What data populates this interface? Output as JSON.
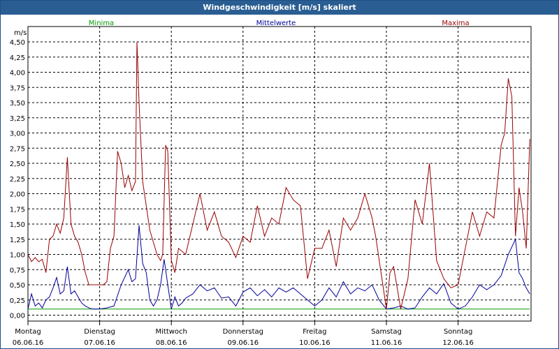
{
  "window": {
    "title": "Windgeschwindigkeit [m/s] skaliert"
  },
  "chart_data": {
    "type": "line",
    "title": "Windgeschwindigkeit [m/s] skaliert",
    "ylabel": "m/s",
    "ylim": [
      0,
      4.7
    ],
    "xlim": [
      0,
      7
    ],
    "yticks": [
      "0,00",
      "0,25",
      "0,50",
      "0,75",
      "1,00",
      "1,25",
      "1,50",
      "1,75",
      "2,00",
      "2,25",
      "2,50",
      "2,75",
      "3,00",
      "3,25",
      "3,50",
      "3,75",
      "4,00",
      "4,25",
      "4,50"
    ],
    "x_labels": [
      {
        "day": "Montag",
        "date": "06.06.16"
      },
      {
        "day": "Dienstag",
        "date": "07.06.16"
      },
      {
        "day": "Mittwoch",
        "date": "08.06.16"
      },
      {
        "day": "Donnerstag",
        "date": "09.06.16"
      },
      {
        "day": "Freitag",
        "date": "10.06.16"
      },
      {
        "day": "Samstag",
        "date": "11.06.16"
      },
      {
        "day": "Sonntag",
        "date": "12.06.16"
      }
    ],
    "grid": true,
    "legend": "top",
    "colors": {
      "minima": "#009900",
      "mittelwerte": "#000099",
      "maxima": "#990000",
      "title_bar": "#2a5e92"
    },
    "series": [
      {
        "name": "Minima",
        "x": [
          0,
          7
        ],
        "values": [
          0.1,
          0.1
        ]
      },
      {
        "name": "Mittelwerte",
        "x": [
          0,
          0.05,
          0.1,
          0.15,
          0.2,
          0.25,
          0.3,
          0.35,
          0.4,
          0.45,
          0.5,
          0.55,
          0.6,
          0.65,
          0.7,
          0.75,
          0.8,
          0.85,
          0.9,
          1.0,
          1.1,
          1.2,
          1.3,
          1.4,
          1.45,
          1.5,
          1.55,
          1.6,
          1.65,
          1.7,
          1.75,
          1.8,
          1.85,
          1.9,
          1.95,
          2.0,
          2.05,
          2.1,
          2.15,
          2.2,
          2.3,
          2.4,
          2.5,
          2.6,
          2.7,
          2.8,
          2.9,
          3.0,
          3.1,
          3.2,
          3.3,
          3.4,
          3.5,
          3.6,
          3.7,
          3.8,
          3.9,
          4.0,
          4.1,
          4.2,
          4.3,
          4.4,
          4.5,
          4.6,
          4.7,
          4.8,
          4.9,
          5.0,
          5.1,
          5.2,
          5.3,
          5.4,
          5.5,
          5.6,
          5.7,
          5.8,
          5.9,
          6.0,
          6.1,
          6.2,
          6.3,
          6.4,
          6.5,
          6.6,
          6.7,
          6.8,
          6.85,
          6.9,
          6.95,
          7.0
        ],
        "values": [
          0.1,
          0.35,
          0.15,
          0.2,
          0.12,
          0.25,
          0.3,
          0.45,
          0.62,
          0.35,
          0.4,
          0.8,
          0.35,
          0.4,
          0.3,
          0.2,
          0.15,
          0.12,
          0.1,
          0.1,
          0.12,
          0.15,
          0.5,
          0.75,
          0.55,
          0.6,
          1.48,
          0.85,
          0.7,
          0.25,
          0.15,
          0.25,
          0.5,
          0.92,
          0.5,
          0.1,
          0.3,
          0.15,
          0.2,
          0.28,
          0.35,
          0.5,
          0.4,
          0.45,
          0.28,
          0.3,
          0.15,
          0.38,
          0.45,
          0.32,
          0.42,
          0.3,
          0.45,
          0.38,
          0.45,
          0.35,
          0.25,
          0.15,
          0.25,
          0.45,
          0.3,
          0.55,
          0.35,
          0.45,
          0.4,
          0.5,
          0.25,
          0.1,
          0.12,
          0.15,
          0.1,
          0.12,
          0.3,
          0.45,
          0.35,
          0.52,
          0.2,
          0.1,
          0.15,
          0.3,
          0.5,
          0.42,
          0.5,
          0.65,
          1.0,
          1.25,
          0.7,
          0.6,
          0.45,
          0.35
        ]
      },
      {
        "name": "Maxima",
        "x": [
          0,
          0.05,
          0.1,
          0.15,
          0.2,
          0.25,
          0.3,
          0.35,
          0.4,
          0.45,
          0.5,
          0.55,
          0.6,
          0.65,
          0.7,
          0.75,
          0.8,
          0.85,
          0.9,
          0.95,
          1.0,
          1.05,
          1.1,
          1.15,
          1.2,
          1.25,
          1.3,
          1.35,
          1.4,
          1.45,
          1.5,
          1.52,
          1.55,
          1.6,
          1.65,
          1.7,
          1.75,
          1.8,
          1.85,
          1.88,
          1.92,
          1.95,
          2.0,
          2.05,
          2.1,
          2.2,
          2.3,
          2.4,
          2.5,
          2.6,
          2.7,
          2.8,
          2.9,
          3.0,
          3.1,
          3.2,
          3.3,
          3.4,
          3.5,
          3.6,
          3.7,
          3.8,
          3.9,
          4.0,
          4.1,
          4.2,
          4.3,
          4.4,
          4.5,
          4.6,
          4.7,
          4.8,
          4.85,
          4.9,
          4.95,
          5.0,
          5.05,
          5.1,
          5.2,
          5.3,
          5.4,
          5.5,
          5.6,
          5.7,
          5.8,
          5.9,
          6.0,
          6.1,
          6.2,
          6.3,
          6.4,
          6.5,
          6.6,
          6.65,
          6.7,
          6.75,
          6.8,
          6.85,
          6.9,
          6.95,
          7.0
        ],
        "values": [
          1.0,
          0.88,
          0.95,
          0.88,
          0.92,
          0.7,
          1.25,
          1.3,
          1.5,
          1.35,
          1.6,
          2.6,
          1.5,
          1.3,
          1.2,
          1.0,
          0.7,
          0.5,
          0.5,
          0.5,
          0.5,
          0.5,
          0.55,
          1.1,
          1.3,
          2.7,
          2.5,
          2.1,
          2.3,
          2.05,
          2.2,
          4.5,
          3.5,
          2.2,
          1.8,
          1.4,
          1.2,
          1.0,
          0.9,
          1.0,
          2.8,
          2.7,
          0.9,
          0.7,
          1.1,
          1.0,
          1.5,
          2.0,
          1.4,
          1.7,
          1.3,
          1.2,
          0.95,
          1.3,
          1.2,
          1.8,
          1.3,
          1.6,
          1.5,
          2.1,
          1.9,
          1.8,
          0.6,
          1.1,
          1.1,
          1.4,
          0.8,
          1.6,
          1.4,
          1.6,
          2.0,
          1.6,
          1.3,
          0.9,
          0.5,
          0.1,
          0.7,
          0.8,
          0.1,
          0.6,
          1.9,
          1.5,
          2.5,
          0.9,
          0.6,
          0.45,
          0.5,
          1.1,
          1.7,
          1.3,
          1.7,
          1.6,
          2.8,
          3.0,
          3.9,
          3.6,
          1.3,
          2.1,
          1.7,
          1.1,
          2.9
        ]
      }
    ]
  }
}
